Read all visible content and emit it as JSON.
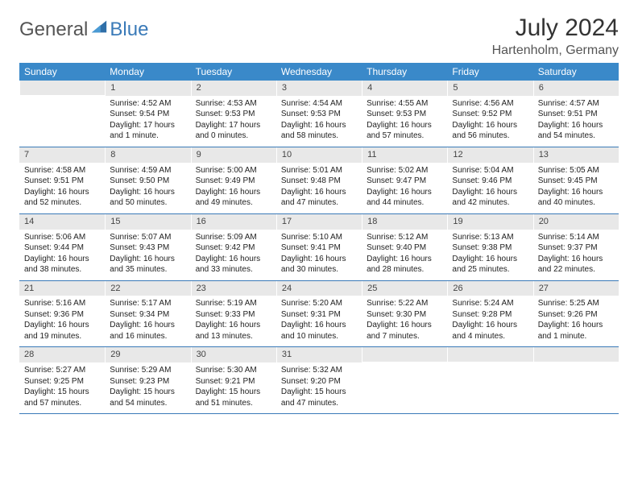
{
  "logo": {
    "text1": "General",
    "text2": "Blue"
  },
  "title": "July 2024",
  "location": "Hartenholm, Germany",
  "colors": {
    "header_bg": "#3a89c9",
    "daynum_bg": "#e8e8e8",
    "accent": "#3a7ab8"
  },
  "weekdays": [
    "Sunday",
    "Monday",
    "Tuesday",
    "Wednesday",
    "Thursday",
    "Friday",
    "Saturday"
  ],
  "weeks": [
    [
      {
        "blank": true
      },
      {
        "n": "1",
        "sr": "Sunrise: 4:52 AM",
        "ss": "Sunset: 9:54 PM",
        "dl": "Daylight: 17 hours and 1 minute."
      },
      {
        "n": "2",
        "sr": "Sunrise: 4:53 AM",
        "ss": "Sunset: 9:53 PM",
        "dl": "Daylight: 17 hours and 0 minutes."
      },
      {
        "n": "3",
        "sr": "Sunrise: 4:54 AM",
        "ss": "Sunset: 9:53 PM",
        "dl": "Daylight: 16 hours and 58 minutes."
      },
      {
        "n": "4",
        "sr": "Sunrise: 4:55 AM",
        "ss": "Sunset: 9:53 PM",
        "dl": "Daylight: 16 hours and 57 minutes."
      },
      {
        "n": "5",
        "sr": "Sunrise: 4:56 AM",
        "ss": "Sunset: 9:52 PM",
        "dl": "Daylight: 16 hours and 56 minutes."
      },
      {
        "n": "6",
        "sr": "Sunrise: 4:57 AM",
        "ss": "Sunset: 9:51 PM",
        "dl": "Daylight: 16 hours and 54 minutes."
      }
    ],
    [
      {
        "n": "7",
        "sr": "Sunrise: 4:58 AM",
        "ss": "Sunset: 9:51 PM",
        "dl": "Daylight: 16 hours and 52 minutes."
      },
      {
        "n": "8",
        "sr": "Sunrise: 4:59 AM",
        "ss": "Sunset: 9:50 PM",
        "dl": "Daylight: 16 hours and 50 minutes."
      },
      {
        "n": "9",
        "sr": "Sunrise: 5:00 AM",
        "ss": "Sunset: 9:49 PM",
        "dl": "Daylight: 16 hours and 49 minutes."
      },
      {
        "n": "10",
        "sr": "Sunrise: 5:01 AM",
        "ss": "Sunset: 9:48 PM",
        "dl": "Daylight: 16 hours and 47 minutes."
      },
      {
        "n": "11",
        "sr": "Sunrise: 5:02 AM",
        "ss": "Sunset: 9:47 PM",
        "dl": "Daylight: 16 hours and 44 minutes."
      },
      {
        "n": "12",
        "sr": "Sunrise: 5:04 AM",
        "ss": "Sunset: 9:46 PM",
        "dl": "Daylight: 16 hours and 42 minutes."
      },
      {
        "n": "13",
        "sr": "Sunrise: 5:05 AM",
        "ss": "Sunset: 9:45 PM",
        "dl": "Daylight: 16 hours and 40 minutes."
      }
    ],
    [
      {
        "n": "14",
        "sr": "Sunrise: 5:06 AM",
        "ss": "Sunset: 9:44 PM",
        "dl": "Daylight: 16 hours and 38 minutes."
      },
      {
        "n": "15",
        "sr": "Sunrise: 5:07 AM",
        "ss": "Sunset: 9:43 PM",
        "dl": "Daylight: 16 hours and 35 minutes."
      },
      {
        "n": "16",
        "sr": "Sunrise: 5:09 AM",
        "ss": "Sunset: 9:42 PM",
        "dl": "Daylight: 16 hours and 33 minutes."
      },
      {
        "n": "17",
        "sr": "Sunrise: 5:10 AM",
        "ss": "Sunset: 9:41 PM",
        "dl": "Daylight: 16 hours and 30 minutes."
      },
      {
        "n": "18",
        "sr": "Sunrise: 5:12 AM",
        "ss": "Sunset: 9:40 PM",
        "dl": "Daylight: 16 hours and 28 minutes."
      },
      {
        "n": "19",
        "sr": "Sunrise: 5:13 AM",
        "ss": "Sunset: 9:38 PM",
        "dl": "Daylight: 16 hours and 25 minutes."
      },
      {
        "n": "20",
        "sr": "Sunrise: 5:14 AM",
        "ss": "Sunset: 9:37 PM",
        "dl": "Daylight: 16 hours and 22 minutes."
      }
    ],
    [
      {
        "n": "21",
        "sr": "Sunrise: 5:16 AM",
        "ss": "Sunset: 9:36 PM",
        "dl": "Daylight: 16 hours and 19 minutes."
      },
      {
        "n": "22",
        "sr": "Sunrise: 5:17 AM",
        "ss": "Sunset: 9:34 PM",
        "dl": "Daylight: 16 hours and 16 minutes."
      },
      {
        "n": "23",
        "sr": "Sunrise: 5:19 AM",
        "ss": "Sunset: 9:33 PM",
        "dl": "Daylight: 16 hours and 13 minutes."
      },
      {
        "n": "24",
        "sr": "Sunrise: 5:20 AM",
        "ss": "Sunset: 9:31 PM",
        "dl": "Daylight: 16 hours and 10 minutes."
      },
      {
        "n": "25",
        "sr": "Sunrise: 5:22 AM",
        "ss": "Sunset: 9:30 PM",
        "dl": "Daylight: 16 hours and 7 minutes."
      },
      {
        "n": "26",
        "sr": "Sunrise: 5:24 AM",
        "ss": "Sunset: 9:28 PM",
        "dl": "Daylight: 16 hours and 4 minutes."
      },
      {
        "n": "27",
        "sr": "Sunrise: 5:25 AM",
        "ss": "Sunset: 9:26 PM",
        "dl": "Daylight: 16 hours and 1 minute."
      }
    ],
    [
      {
        "n": "28",
        "sr": "Sunrise: 5:27 AM",
        "ss": "Sunset: 9:25 PM",
        "dl": "Daylight: 15 hours and 57 minutes."
      },
      {
        "n": "29",
        "sr": "Sunrise: 5:29 AM",
        "ss": "Sunset: 9:23 PM",
        "dl": "Daylight: 15 hours and 54 minutes."
      },
      {
        "n": "30",
        "sr": "Sunrise: 5:30 AM",
        "ss": "Sunset: 9:21 PM",
        "dl": "Daylight: 15 hours and 51 minutes."
      },
      {
        "n": "31",
        "sr": "Sunrise: 5:32 AM",
        "ss": "Sunset: 9:20 PM",
        "dl": "Daylight: 15 hours and 47 minutes."
      },
      {
        "blank": true
      },
      {
        "blank": true
      },
      {
        "blank": true
      }
    ]
  ]
}
